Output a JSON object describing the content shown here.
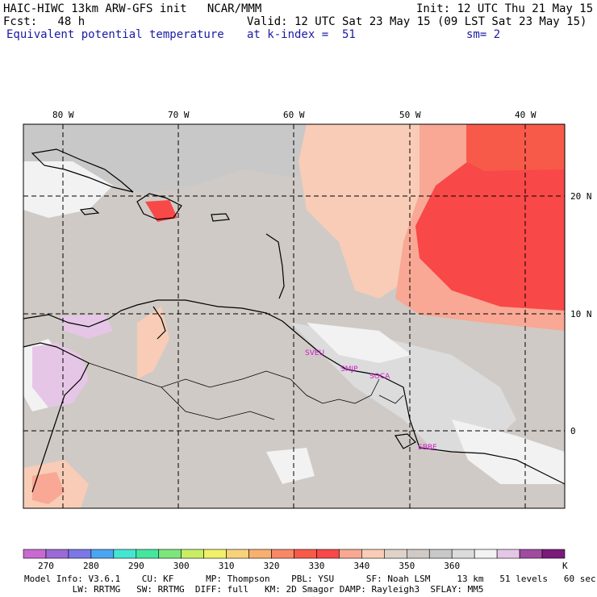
{
  "header": {
    "model_line": "HAIC-HIWC 13km ARW-GFS init   NCAR/MMM",
    "init_line": "Init: 12 UTC Thu 21 May 15",
    "fcst_line": "Fcst:   48 h",
    "valid_line": "Valid: 12 UTC Sat 23 May 15 (09 LST Sat 23 May 15)",
    "field_name": "Equivalent potential temperature",
    "level_line": "at k-index =  51",
    "smoothing": "sm= 2"
  },
  "map": {
    "lon_labels": [
      "80 W",
      "70 W",
      "60 W",
      "50 W",
      "40 W"
    ],
    "lat_labels": [
      "20 N",
      "10 N",
      "0"
    ],
    "stations": [
      "SVEU",
      "SMJP",
      "SOCA",
      "SBBE"
    ]
  },
  "colorbar": {
    "colors": [
      "#c86ad0",
      "#9a6ad6",
      "#7a78e6",
      "#4aa6f0",
      "#44e6d2",
      "#44e6a0",
      "#7ce67c",
      "#c8ee64",
      "#f0f06a",
      "#f8d27a",
      "#f8b070",
      "#f88866",
      "#f85a4a",
      "#f84848",
      "#f8a894",
      "#f8ccb6",
      "#e0d2c8",
      "#cfcac6",
      "#c8c8c8",
      "#dcdcdc",
      "#f2f2f2",
      "#e6c6e6",
      "#a04aa0",
      "#7a1a7a"
    ],
    "tick_labels": [
      "270",
      "280",
      "290",
      "300",
      "310",
      "320",
      "330",
      "340",
      "350",
      "360"
    ],
    "units": "K"
  },
  "footer": {
    "line1": "Model Info: V3.6.1    CU: KF      MP: Thompson    PBL: YSU      SF: Noah LSM     13 km   51 levels   60 sec",
    "line2": "         LW: RRTMG   SW: RRTMG  DIFF: full   KM: 2D Smagor DAMP: Rayleigh3  SFLAY: MM5"
  }
}
